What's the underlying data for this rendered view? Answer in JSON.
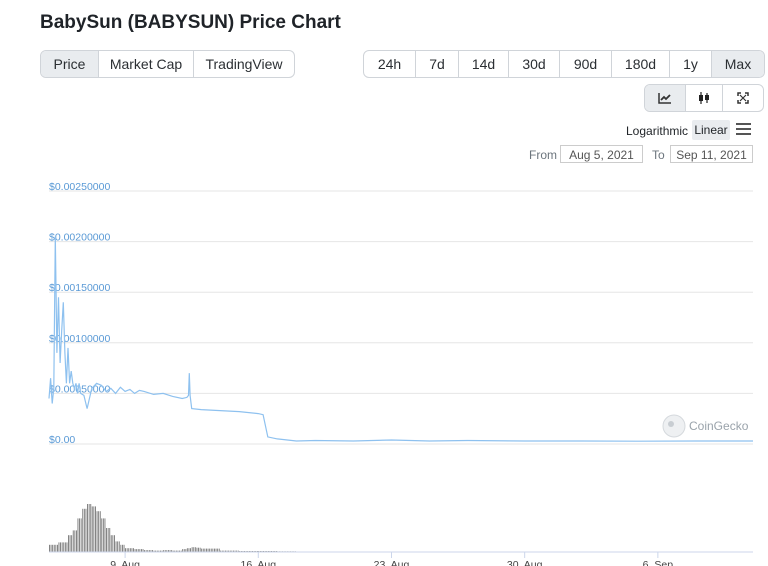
{
  "title": "BabySun (BABYSUN) Price Chart",
  "tabs": [
    {
      "label": "Price",
      "active": true
    },
    {
      "label": "Market Cap",
      "active": false
    },
    {
      "label": "TradingView",
      "active": false
    }
  ],
  "ranges": [
    {
      "label": "24h",
      "active": false
    },
    {
      "label": "7d",
      "active": false
    },
    {
      "label": "14d",
      "active": false
    },
    {
      "label": "30d",
      "active": false
    },
    {
      "label": "90d",
      "active": false
    },
    {
      "label": "180d",
      "active": false
    },
    {
      "label": "1y",
      "active": false
    },
    {
      "label": "Max",
      "active": true
    }
  ],
  "tools": [
    {
      "icon": "line-chart-icon",
      "active": true
    },
    {
      "icon": "candlestick-icon",
      "active": false
    },
    {
      "icon": "fullscreen-icon",
      "active": false
    }
  ],
  "scale": {
    "log_label": "Logarithmic",
    "linear_label": "Linear",
    "selected": "Linear"
  },
  "range_inputs": {
    "from_label": "From",
    "from_value": "Aug 5, 2021",
    "to_label": "To",
    "to_value": "Sep 11, 2021"
  },
  "watermark": "CoinGecko",
  "colors": {
    "line": "#8ec1ef",
    "axis_labels": "#5a9ad6",
    "volume": "#777777",
    "grid": "#e6e6e6",
    "active_button": "#e9ecef"
  },
  "chart_data": {
    "type": "line",
    "x_unit": "date",
    "y_label_prefix": "$",
    "ylim": [
      0,
      0.0025
    ],
    "yticks": [
      {
        "value": 0.0025,
        "label": "$0.00250000"
      },
      {
        "value": 0.002,
        "label": "$0.00200000"
      },
      {
        "value": 0.0015,
        "label": "$0.00150000"
      },
      {
        "value": 0.001,
        "label": "$0.00100000"
      },
      {
        "value": 0.0005,
        "label": "$0.00050000"
      },
      {
        "value": 0,
        "label": "$0.00"
      }
    ],
    "xlim": [
      "2021-08-05",
      "2021-09-11"
    ],
    "xticks": [
      {
        "date": "2021-08-09",
        "label": "9. Aug"
      },
      {
        "date": "2021-08-16",
        "label": "16. Aug"
      },
      {
        "date": "2021-08-23",
        "label": "23. Aug"
      },
      {
        "date": "2021-08-30",
        "label": "30. Aug"
      },
      {
        "date": "2021-09-06",
        "label": "6. Sep"
      }
    ],
    "grid": true,
    "price": {
      "x": [
        "2021-08-05T00:00",
        "2021-08-05T02:00",
        "2021-08-05T04:00",
        "2021-08-05T06:00",
        "2021-08-05T08:00",
        "2021-08-05T10:00",
        "2021-08-05T12:00",
        "2021-08-05T14:00",
        "2021-08-05T16:00",
        "2021-08-05T18:00",
        "2021-08-05T20:00",
        "2021-08-05T22:00",
        "2021-08-06T00:00",
        "2021-08-06T02:00",
        "2021-08-06T04:00",
        "2021-08-06T06:00",
        "2021-08-06T08:00",
        "2021-08-06T10:00",
        "2021-08-06T12:00",
        "2021-08-06T14:00",
        "2021-08-06T16:00",
        "2021-08-06T20:00",
        "2021-08-07T00:00",
        "2021-08-07T06:00",
        "2021-08-07T12:00",
        "2021-08-07T18:00",
        "2021-08-08T00:00",
        "2021-08-08T06:00",
        "2021-08-08T12:00",
        "2021-08-08T18:00",
        "2021-08-09T00:00",
        "2021-08-09T06:00",
        "2021-08-09T12:00",
        "2021-08-09T18:00",
        "2021-08-10T00:00",
        "2021-08-10T12:00",
        "2021-08-11T00:00",
        "2021-08-11T12:00",
        "2021-08-12T00:00",
        "2021-08-12T06:00",
        "2021-08-12T08:00",
        "2021-08-12T09:00",
        "2021-08-12T10:00",
        "2021-08-12T12:00",
        "2021-08-13T00:00",
        "2021-08-14T00:00",
        "2021-08-15T00:00",
        "2021-08-16T00:00",
        "2021-08-16T06:00",
        "2021-08-16T12:00",
        "2021-08-17T00:00",
        "2021-08-18T00:00",
        "2021-08-19T00:00",
        "2021-08-21T00:00",
        "2021-08-23T00:00",
        "2021-08-25T00:00",
        "2021-08-27T00:00",
        "2021-08-30T00:00",
        "2021-09-02T00:00",
        "2021-09-05T00:00",
        "2021-09-08T00:00",
        "2021-09-10T00:00",
        "2021-09-11T00:00"
      ],
      "y": [
        0.00045,
        0.00065,
        0.0004,
        0.00055,
        0.00205,
        0.0009,
        0.00145,
        0.0008,
        0.00112,
        0.0014,
        0.0009,
        0.0006,
        0.00095,
        0.0006,
        0.00072,
        0.0006,
        0.00055,
        0.0006,
        0.0005,
        0.0006,
        0.0005,
        0.00048,
        0.00035,
        0.00055,
        0.0006,
        0.00058,
        0.00052,
        0.00055,
        0.0005,
        0.00056,
        0.00052,
        0.00054,
        0.0005,
        0.00053,
        0.00052,
        0.00049,
        0.0005,
        0.00047,
        0.00045,
        0.00046,
        0.00048,
        0.0007,
        0.00048,
        0.00035,
        0.00034,
        0.00033,
        0.00032,
        0.0003,
        0.00029,
        7e-05,
        5e-05,
        3e-05,
        3.5e-05,
        3e-05,
        4e-05,
        3e-05,
        3.5e-05,
        3e-05,
        3e-05,
        2.8e-05,
        3e-05,
        3e-05,
        3e-05
      ]
    },
    "volume": {
      "x": [
        "2021-08-05T00:00",
        "2021-08-05T12:00",
        "2021-08-06T00:00",
        "2021-08-06T06:00",
        "2021-08-06T12:00",
        "2021-08-06T18:00",
        "2021-08-07T00:00",
        "2021-08-07T06:00",
        "2021-08-07T12:00",
        "2021-08-07T18:00",
        "2021-08-08T00:00",
        "2021-08-08T06:00",
        "2021-08-08T12:00",
        "2021-08-08T18:00",
        "2021-08-09T00:00",
        "2021-08-09T12:00",
        "2021-08-10T00:00",
        "2021-08-10T12:00",
        "2021-08-11T00:00",
        "2021-08-11T12:00",
        "2021-08-12T00:00",
        "2021-08-12T06:00",
        "2021-08-12T12:00",
        "2021-08-12T18:00",
        "2021-08-13T00:00",
        "2021-08-14T00:00",
        "2021-08-15T00:00",
        "2021-08-16T00:00",
        "2021-08-17T00:00",
        "2021-08-18T00:00"
      ],
      "relative": [
        0.15,
        0.2,
        0.35,
        0.45,
        0.7,
        0.9,
        1.0,
        0.95,
        0.85,
        0.7,
        0.5,
        0.35,
        0.22,
        0.15,
        0.08,
        0.06,
        0.04,
        0.03,
        0.04,
        0.03,
        0.06,
        0.08,
        0.1,
        0.09,
        0.07,
        0.03,
        0.02,
        0.02,
        0.015,
        0.01
      ]
    }
  }
}
